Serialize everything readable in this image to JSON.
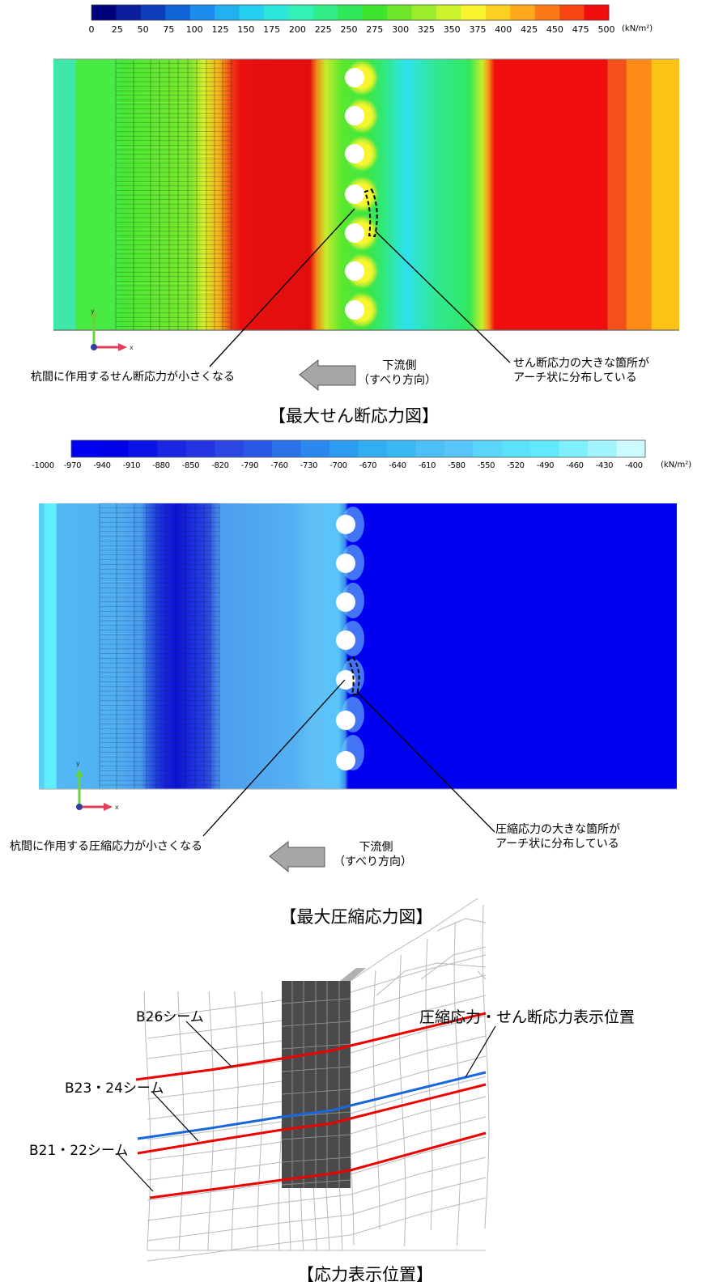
{
  "shear_legend": {
    "ticks": [
      "0",
      "25",
      "50",
      "75",
      "100",
      "125",
      "150",
      "175",
      "200",
      "225",
      "250",
      "275",
      "300",
      "325",
      "350",
      "375",
      "400",
      "425",
      "450",
      "475",
      "500"
    ],
    "unit": "(kN/m²)",
    "colors": [
      "#00007a",
      "#0a1d9b",
      "#0d3dbd",
      "#1163d8",
      "#1a8ceb",
      "#22b1f0",
      "#24d0ee",
      "#2ee7dc",
      "#33f0b4",
      "#30ed85",
      "#2fe756",
      "#3fe52d",
      "#6ce52a",
      "#9ded2c",
      "#cdf22e",
      "#f8f52f",
      "#fcd020",
      "#fca81a",
      "#fb7a17",
      "#f74514",
      "#f00d0d"
    ]
  },
  "comp_legend": {
    "ticks": [
      "-1000",
      "-970",
      "-940",
      "-910",
      "-880",
      "-850",
      "-820",
      "-790",
      "-760",
      "-730",
      "-700",
      "-670",
      "-640",
      "-610",
      "-580",
      "-550",
      "-520",
      "-490",
      "-460",
      "-430",
      "-400"
    ],
    "unit": "(kN/m²)",
    "colors": [
      "#0000f0",
      "#0000e8",
      "#0a14e6",
      "#1a26e2",
      "#2434e2",
      "#2c46e4",
      "#2a58e6",
      "#2a72ea",
      "#2a88ee",
      "#2c9cf0",
      "#32aef2",
      "#3ab8f4",
      "#4cc0f6",
      "#58c6f8",
      "#5ad6fa",
      "#5ce2fa",
      "#62eafc",
      "#7ef0fc",
      "#a2f4fc",
      "#ccfafe"
    ]
  },
  "shear_diagram": {
    "left_annotation": "杭間に作用するせん断応力が小さくなる",
    "right_annotation": [
      "せん断応力の大きな箇所が",
      "アーチ状に分布している"
    ],
    "downstream_label": [
      "下流側",
      "（すべり方向）"
    ],
    "caption": "【最大せん断応力図】"
  },
  "comp_diagram": {
    "left_annotation": "杭間に作用する圧縮応力が小さくなる",
    "right_annotation": [
      "圧縮応力の大きな箇所が",
      "アーチ状に分布している"
    ],
    "downstream_label": [
      "下流側",
      "（すべり方向）"
    ],
    "caption": "【最大圧縮応力図】"
  },
  "position_diagram": {
    "labels": {
      "b26": "B26シーム",
      "b23_24": "B23・24シーム",
      "b21_22": "B21・22シーム",
      "display": "圧縮応力・せん断応力表示位置"
    },
    "seam_color": "#ee0000",
    "display_line_color": "#1a66dd",
    "caption": "【応力表示位置】"
  },
  "axes": {
    "x": "x",
    "y": "y"
  }
}
